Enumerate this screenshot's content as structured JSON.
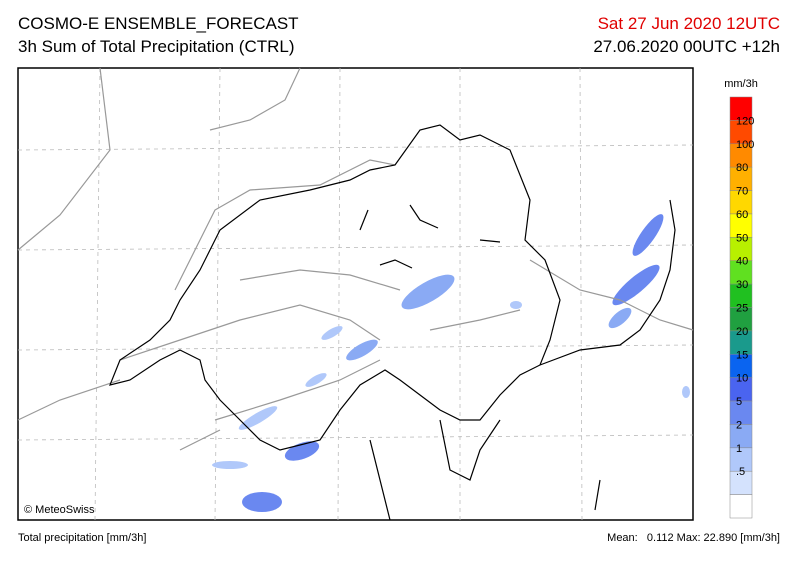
{
  "header": {
    "title": "COSMO-E ENSEMBLE_FORECAST",
    "subtitle": "3h Sum of Total Precipitation (CTRL)",
    "valid_time": "Sat 27 Jun 2020 12UTC",
    "run": "27.06.2020 00UTC +12h"
  },
  "legend": {
    "unit": "mm/3h",
    "colors": [
      "#ff0000",
      "#ff4a00",
      "#ff8a00",
      "#ffb000",
      "#ffd800",
      "#ffff00",
      "#b8f000",
      "#60e020",
      "#20c020",
      "#20a040",
      "#1a9a8c",
      "#0a64f0",
      "#4a64f0",
      "#6a88f0",
      "#8aaaf4",
      "#b0c8fa",
      "#d4e2fd",
      "#ffffff"
    ],
    "labels": [
      "120",
      "100",
      "80",
      "70",
      "60",
      "50",
      "40",
      "30",
      "25",
      "20",
      "15",
      "10",
      "5",
      "2",
      "1",
      ".5"
    ]
  },
  "map": {
    "copyright": "© MeteoSwiss"
  },
  "footer": {
    "left": "Total precipitation [mm/3h]",
    "right": "Mean:   0.112 Max: 22.890 [mm/3h]"
  }
}
